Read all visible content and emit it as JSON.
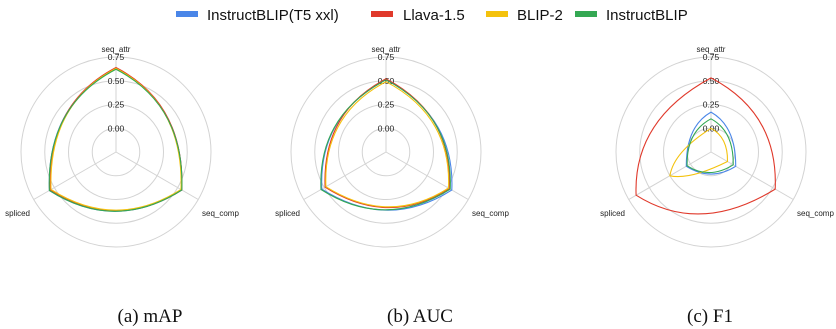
{
  "legend": {
    "items": [
      {
        "label": "InstructBLIP(T5 xxl)",
        "color": "#4a86e8"
      },
      {
        "label": "Llava-1.5",
        "color": "#e0392b"
      },
      {
        "label": "BLIP-2",
        "color": "#f4c20d"
      },
      {
        "label": "InstructBLIP",
        "color": "#34a853"
      }
    ]
  },
  "chart_data": [
    {
      "type": "radar",
      "caption": "(a) mAP",
      "axes": [
        "seq_attr",
        "seq_comp",
        "spliced"
      ],
      "radial_ticks": [
        "0.00",
        "0.25",
        "0.50",
        "0.75"
      ],
      "rlim": [
        -0.25,
        0.75
      ],
      "grid": true,
      "series": [
        {
          "name": "InstructBLIP(T5 xxl)",
          "values": [
            0.63,
            0.55,
            0.56
          ]
        },
        {
          "name": "Llava-1.5",
          "values": [
            0.64,
            0.55,
            0.55
          ]
        },
        {
          "name": "BLIP-2",
          "values": [
            0.63,
            0.54,
            0.54
          ]
        },
        {
          "name": "InstructBLIP",
          "values": [
            0.62,
            0.55,
            0.56
          ]
        }
      ]
    },
    {
      "type": "radar",
      "caption": "(b) AUC",
      "axes": [
        "seq_attr",
        "seq_comp",
        "spliced"
      ],
      "radial_ticks": [
        "0.00",
        "0.25",
        "0.50",
        "0.75"
      ],
      "rlim": [
        -0.25,
        0.75
      ],
      "grid": true,
      "series": [
        {
          "name": "InstructBLIP(T5 xxl)",
          "values": [
            0.51,
            0.55,
            0.53
          ]
        },
        {
          "name": "Llava-1.5",
          "values": [
            0.52,
            0.52,
            0.49
          ]
        },
        {
          "name": "BLIP-2",
          "values": [
            0.49,
            0.51,
            0.48
          ]
        },
        {
          "name": "InstructBLIP",
          "values": [
            0.51,
            0.53,
            0.54
          ]
        }
      ]
    },
    {
      "type": "radar",
      "caption": "(c) F1",
      "axes": [
        "seq_attr",
        "seq_comp",
        "spliced"
      ],
      "radial_ticks": [
        "0.00",
        "0.25",
        "0.50",
        "0.75"
      ],
      "rlim": [
        -0.25,
        0.75
      ],
      "grid": true,
      "series": [
        {
          "name": "InstructBLIP(T5 xxl)",
          "values": [
            0.17,
            0.05,
            0.05
          ]
        },
        {
          "name": "Llava-1.5",
          "values": [
            0.53,
            0.53,
            0.66
          ]
        },
        {
          "name": "BLIP-2",
          "values": [
            0.0,
            -0.05,
            0.25
          ]
        },
        {
          "name": "InstructBLIP",
          "values": [
            0.1,
            0.02,
            0.04
          ]
        }
      ]
    }
  ]
}
